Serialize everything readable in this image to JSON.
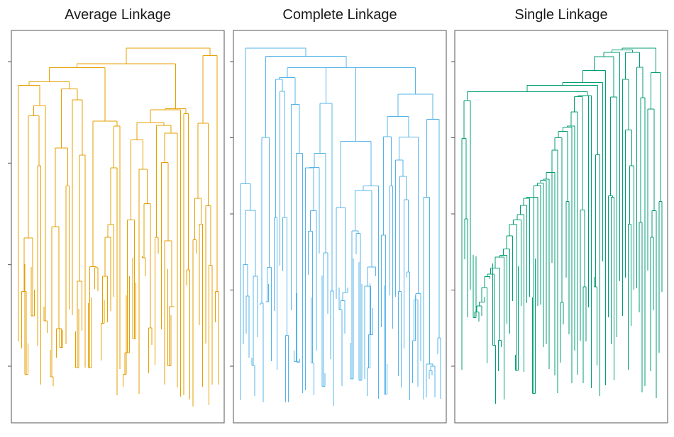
{
  "panels": [
    {
      "title": "Average Linkage",
      "color": "#E69F00",
      "tick_count": 4,
      "seed": 11
    },
    {
      "title": "Complete Linkage",
      "color": "#56B4E9",
      "tick_count": 5,
      "seed": 23
    },
    {
      "title": "Single Linkage",
      "color": "#009E73",
      "tick_count": 5,
      "seed": 37
    }
  ]
}
